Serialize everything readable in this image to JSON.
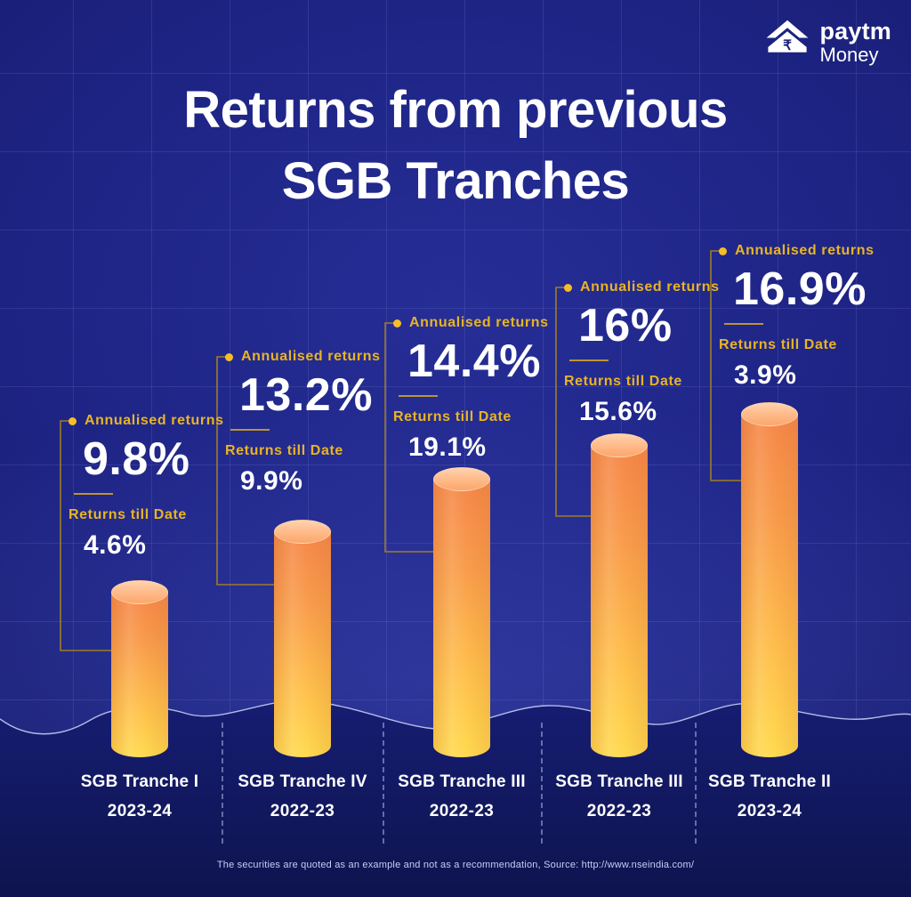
{
  "logo": {
    "brand": "paytm",
    "sub": "Money",
    "rupee_glyph": "₹"
  },
  "title": {
    "line1": "Returns from previous",
    "line2": "SGB Tranches"
  },
  "annotation_labels": {
    "annualised": "Annualised returns",
    "till_date": "Returns till Date"
  },
  "tranches": [
    {
      "name": "SGB Tranche I",
      "year": "2023-24",
      "annualised": "9.8%",
      "till_date": "4.6%"
    },
    {
      "name": "SGB Tranche IV",
      "year": "2022-23",
      "annualised": "13.2%",
      "till_date": "9.9%"
    },
    {
      "name": "SGB Tranche III",
      "year": "2022-23",
      "annualised": "14.4%",
      "till_date": "19.1%"
    },
    {
      "name": "SGB Tranche III",
      "year": "2022-23",
      "annualised": "16%",
      "till_date": "15.6%"
    },
    {
      "name": "SGB Tranche II",
      "year": "2023-24",
      "annualised": "16.9%",
      "till_date": "3.9%"
    }
  ],
  "chart_data": {
    "type": "bar",
    "bar_style": "3d-cylinder",
    "title": "Returns from previous SGB Tranches",
    "categories": [
      "SGB Tranche I 2023-24",
      "SGB Tranche IV 2022-23",
      "SGB Tranche III 2022-23",
      "SGB Tranche III 2022-23",
      "SGB Tranche II 2023-24"
    ],
    "series": [
      {
        "name": "Annualised returns",
        "unit": "%",
        "values": [
          9.8,
          13.2,
          14.4,
          16,
          16.9
        ]
      },
      {
        "name": "Returns till Date",
        "unit": "%",
        "values": [
          4.6,
          9.9,
          19.1,
          15.6,
          3.9
        ]
      }
    ],
    "legend_position": "per-bar callout annotations",
    "grid": true,
    "note": "Bar heights depict annualised returns; values labelled beside each bar"
  },
  "footer": {
    "disclaimer": "The securities are quoted as an example and not as a recommendation, Source: http://www.nseindia.com/"
  },
  "colors": {
    "background": "#1d2383",
    "background_bottom_wave": "#131a67",
    "grid_line": "#969ee8",
    "accent_gold": "#e8b424",
    "connector_gold": "#a5821f",
    "bar_gradient_top": "#f6874a",
    "bar_gradient_bottom": "#ffda50",
    "bar_cap": "#ffbf91",
    "text_white": "#ffffff"
  }
}
